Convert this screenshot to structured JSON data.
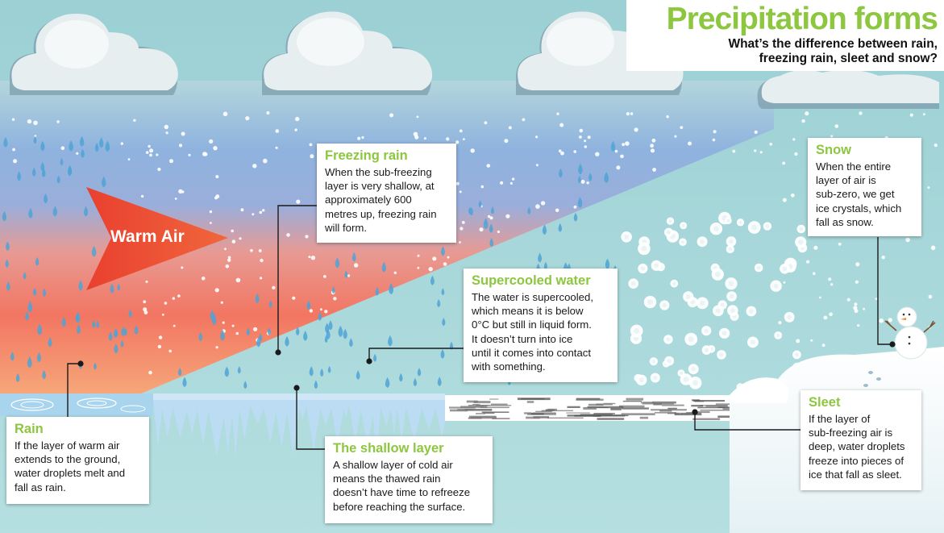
{
  "title": "Precipitation forms",
  "subtitle_line1": "What’s the difference between rain,",
  "subtitle_line2": "freezing rain, sleet and snow?",
  "arrow_label": "Warm Air",
  "callouts": {
    "freezing_rain": {
      "heading": "Freezing rain",
      "lines": [
        "When the sub-freezing",
        "layer is very shallow, at",
        "approximately 600",
        "metres up, freezing rain",
        "will form."
      ]
    },
    "supercooled": {
      "heading": "Supercooled water",
      "lines": [
        "The water is supercooled,",
        "which means it is below",
        "0°C but still in liquid form.",
        "It doesn’t turn into ice",
        "until it comes into contact",
        "with something."
      ]
    },
    "snow": {
      "heading": "Snow",
      "lines": [
        "When the entire",
        "layer of air is",
        "sub-zero, we get",
        "ice crystals, which",
        "fall as snow."
      ]
    },
    "rain": {
      "heading": "Rain",
      "lines": [
        "If the layer of warm air",
        "extends to the ground,",
        "water droplets melt and",
        "fall as rain."
      ]
    },
    "shallow_layer": {
      "heading": "The shallow layer",
      "lines": [
        "A shallow layer of cold air",
        "means the thawed rain",
        "doesn’t have time to refreeze",
        "before reaching the surface."
      ]
    },
    "sleet": {
      "heading": "Sleet",
      "lines": [
        "If the layer of",
        "sub-freezing air is",
        "deep, water droplets",
        "freeze into pieces of",
        "ice that fall as sleet."
      ]
    }
  },
  "colors": {
    "accent_green": "#8dc63f",
    "sky": "#9fd4d6",
    "warm_red": "#ef4a3a",
    "warm_orange": "#f5a070",
    "cold_blue": "#8fb0de",
    "raindrop": "#4fa3d6",
    "ice": "#b9daf3",
    "leader_line": "#1a1a1a"
  }
}
